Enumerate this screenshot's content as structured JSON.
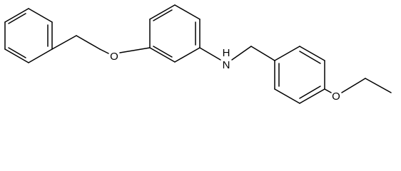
{
  "atoms": [
    {
      "label": "O"
    },
    {
      "label": "H"
    },
    {
      "label": "N"
    },
    {
      "label": "O"
    }
  ]
}
